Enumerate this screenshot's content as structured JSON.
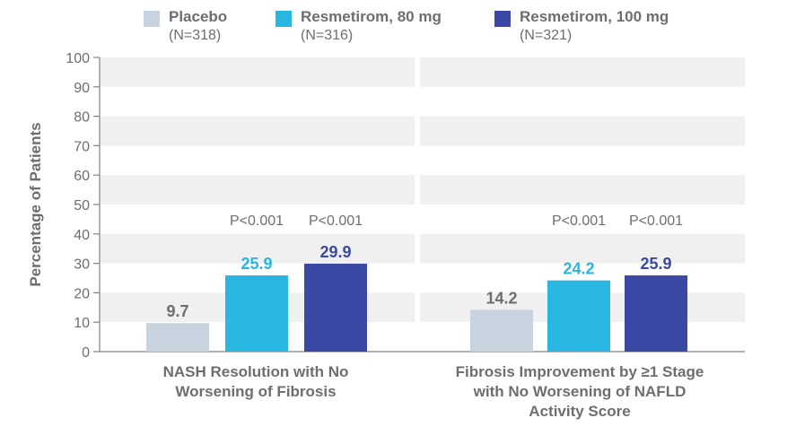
{
  "colors": {
    "placebo": "#c7d3df",
    "resmetirom_80": "#29b6e0",
    "resmetirom_100": "#3a4aa4",
    "text": "#6d6e71",
    "grid_band": "#f0f0f0"
  },
  "legend": [
    {
      "name": "Placebo",
      "n": "(N=318)"
    },
    {
      "name": "Resmetirom, 80 mg",
      "n": "(N=316)"
    },
    {
      "name": "Resmetirom, 100 mg",
      "n": "(N=321)"
    }
  ],
  "chart_data": {
    "type": "bar",
    "ylabel": "Percentage of Patients",
    "xlabel": "",
    "ylim": [
      0,
      100
    ],
    "yticks": [
      0,
      10,
      20,
      30,
      40,
      50,
      60,
      70,
      80,
      90,
      100
    ],
    "grid": "alternating horizontal bands",
    "legend_position": "top",
    "categories": [
      "NASH Resolution with No\nWorsening of Fibrosis",
      "Fibrosis Improvement by ≥1 Stage\nwith No Worsening of NAFLD\nActivity Score"
    ],
    "series": [
      {
        "name": "Placebo",
        "values": [
          9.7,
          14.2
        ],
        "labels": [
          "9.7",
          "14.2"
        ],
        "pvalues": [
          "",
          ""
        ]
      },
      {
        "name": "Resmetirom, 80 mg",
        "values": [
          25.9,
          24.2
        ],
        "labels": [
          "25.9",
          "24.2"
        ],
        "pvalues": [
          "P<0.001",
          "P<0.001"
        ]
      },
      {
        "name": "Resmetirom, 100 mg",
        "values": [
          29.9,
          25.9
        ],
        "labels": [
          "29.9",
          "25.9"
        ],
        "pvalues": [
          "P<0.001",
          "P<0.001"
        ]
      }
    ]
  }
}
